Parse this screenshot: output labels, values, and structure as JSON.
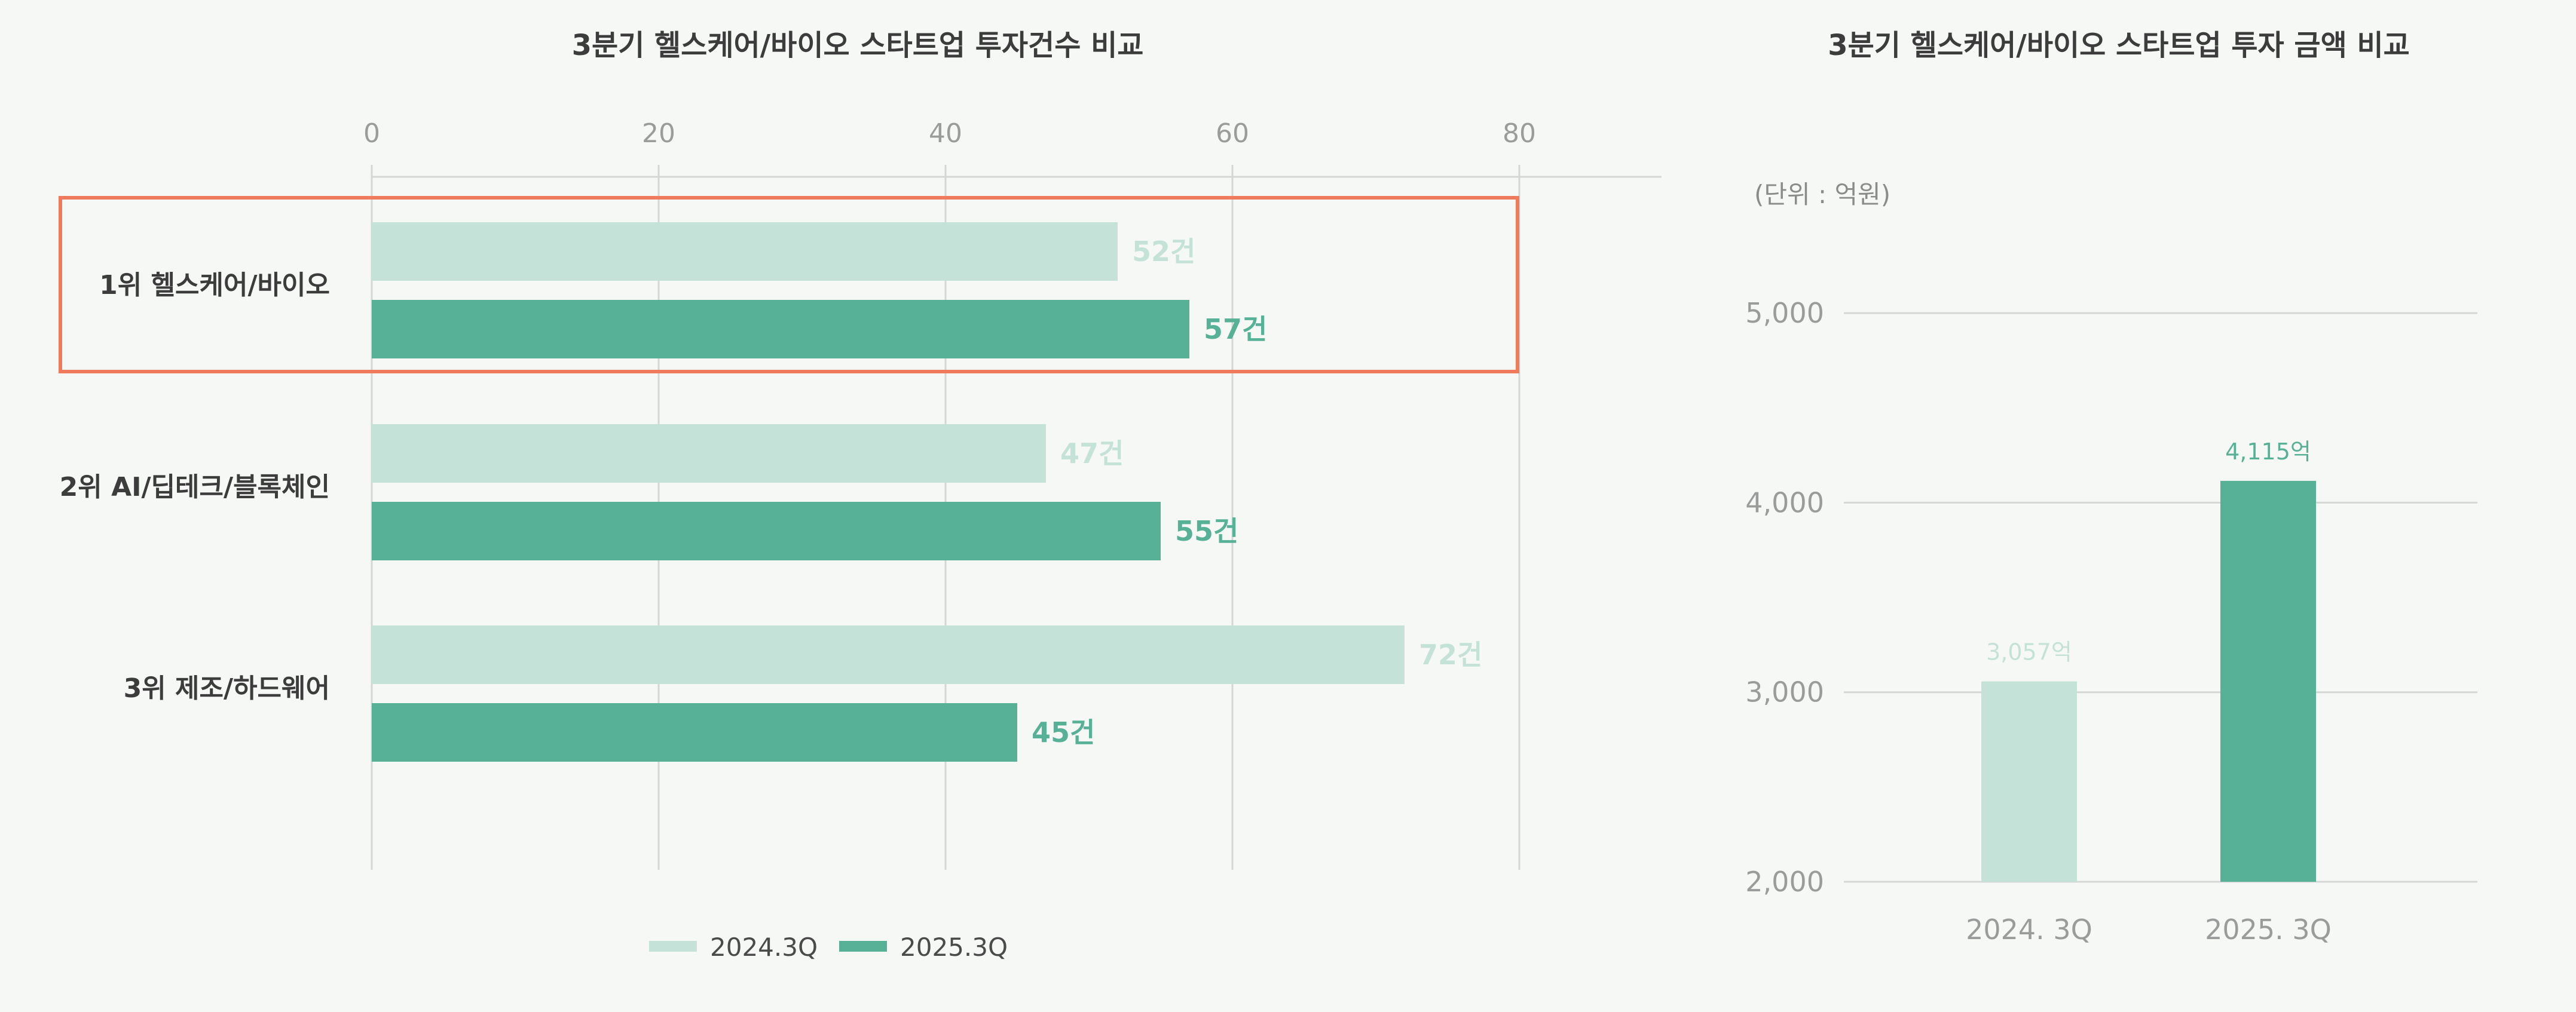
{
  "colors": {
    "light": "#c5e2d9",
    "dark": "#57b197",
    "highlight": "#f07a5c",
    "grid": "#d4d7d5",
    "tick": "#9a9c9b",
    "text": "#3c3c3c",
    "background": "#f6f8f6"
  },
  "chart_data": [
    {
      "type": "bar",
      "orientation": "horizontal",
      "title": "3분기 헬스케어/바이오 스타트업 투자건수 비교",
      "categories": [
        "1위 헬스케어/바이오",
        "2위 AI/딥테크/블록체인",
        "3위 제조/하드웨어"
      ],
      "series": [
        {
          "name": "2024.3Q",
          "values": [
            52,
            47,
            72
          ],
          "labels": [
            "52건",
            "47건",
            "72건"
          ]
        },
        {
          "name": "2025.3Q",
          "values": [
            57,
            55,
            45
          ],
          "labels": [
            "57건",
            "55건",
            "45건"
          ]
        }
      ],
      "x_ticks": [
        "0",
        "20",
        "40",
        "60",
        "80"
      ],
      "xlim": [
        0,
        90
      ],
      "grid": true,
      "axis_position": "top",
      "legend_position": "bottom",
      "highlighted_category": "1위 헬스케어/바이오"
    },
    {
      "type": "bar",
      "orientation": "vertical",
      "title": "3분기 헬스케어/바이오 스타트업 투자 금액 비교",
      "unit_label": "(단위 : 억원)",
      "categories": [
        "2024. 3Q",
        "2025. 3Q"
      ],
      "values": [
        3057,
        4115
      ],
      "labels": [
        "3,057억",
        "4,115억"
      ],
      "y_ticks": [
        "2,000",
        "3,000",
        "4,000",
        "5,000"
      ],
      "ylim": [
        2000,
        5000
      ],
      "grid": true
    }
  ]
}
